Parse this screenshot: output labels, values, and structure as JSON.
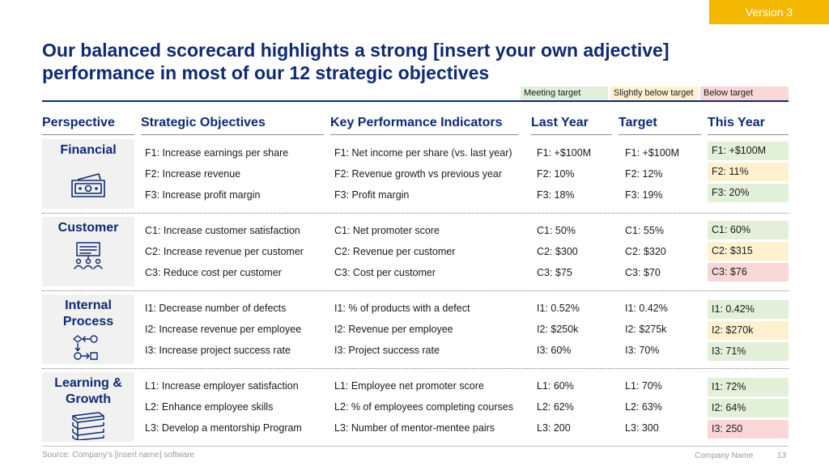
{
  "version_tag": "Version 3",
  "title_line1": "Our balanced scorecard highlights a strong [insert your own adjective]",
  "title_line2": "performance in most of our 12 strategic objectives",
  "legend": {
    "meeting": "Meeting target",
    "slightly_below": "Slightly below target",
    "below": "Below target"
  },
  "colors": {
    "title": "#0e2a72",
    "meeting": "#e2efd9",
    "slightly_below": "#fdf1cf",
    "below": "#f9d7d7",
    "version_tag": "#f5b800"
  },
  "headers": {
    "perspective": "Perspective",
    "objectives": "Strategic Objectives",
    "kpis": "Key Performance Indicators",
    "last_year": "Last Year",
    "target": "Target",
    "this_year": "This Year"
  },
  "perspectives": [
    {
      "label": "Financial",
      "icon": "money-icon",
      "objectives": [
        "F1: Increase earnings per share",
        "F2: Increase revenue",
        "F3: Increase profit margin"
      ],
      "kpis": [
        "F1: Net income per share (vs. last year)",
        "F2: Revenue growth vs previous year",
        "F3: Profit margin"
      ],
      "last_year": [
        "F1: +$100M",
        "F2: 10%",
        "F3: 18%"
      ],
      "target": [
        "F1: +$100M",
        "F2: 12%",
        "F3: 19%"
      ],
      "this_year": [
        "F1: +$100M",
        "F2: 11%",
        "F3: 20%"
      ],
      "status": [
        "meeting",
        "slightly_below",
        "meeting"
      ]
    },
    {
      "label": "Customer",
      "icon": "customer-presentation-icon",
      "objectives": [
        "C1: Increase customer satisfaction",
        "C2: Increase revenue per customer",
        "C3: Reduce cost per customer"
      ],
      "kpis": [
        "C1: Net promoter score",
        "C2: Revenue per customer",
        "C3: Cost per customer"
      ],
      "last_year": [
        "C1: 50%",
        "C2: $300",
        "C3: $75"
      ],
      "target": [
        "C1: 55%",
        "C2: $320",
        "C3: $70"
      ],
      "this_year": [
        "C1: 60%",
        "C2: $315",
        "C3: $76"
      ],
      "status": [
        "meeting",
        "slightly_below",
        "below"
      ]
    },
    {
      "label": "Internal Process",
      "icon": "process-flow-icon",
      "objectives": [
        "I1: Decrease number of defects",
        "I2: Increase revenue per employee",
        "I3: Increase project success rate"
      ],
      "kpis": [
        "I1: % of products with a defect",
        "I2: Revenue per employee",
        "I3: Project success rate"
      ],
      "last_year": [
        "I1: 0.52%",
        "I2: $250k",
        "I3: 60%"
      ],
      "target": [
        "I1: 0.42%",
        "I2: $275k",
        "I3: 70%"
      ],
      "this_year": [
        "I1: 0.42%",
        "I2: $270k",
        "I3: 71%"
      ],
      "status": [
        "meeting",
        "slightly_below",
        "meeting"
      ]
    },
    {
      "label": "Learning & Growth",
      "icon": "books-icon",
      "objectives": [
        "L1: Increase employer satisfaction",
        "L2: Enhance employee skills",
        "L3: Develop a mentorship Program"
      ],
      "kpis": [
        "L1: Employee net promoter score",
        "L2: % of employees completing courses",
        "L3: Number of mentor-mentee pairs"
      ],
      "last_year": [
        "L1: 60%",
        "L2: 62%",
        "L3: 200"
      ],
      "target": [
        "L1: 70%",
        "L2: 63%",
        "L3: 300"
      ],
      "this_year": [
        "I1: 72%",
        "I2: 64%",
        "I3: 250"
      ],
      "status": [
        "meeting",
        "meeting",
        "below"
      ]
    }
  ],
  "footer": {
    "source": "Source: Company's [insert name] software",
    "company": "Company Name",
    "page": "13"
  }
}
